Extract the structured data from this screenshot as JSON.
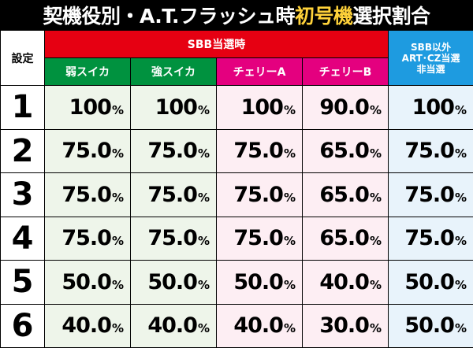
{
  "title": {
    "prefix": "契機役別・A.T.フラッシュ時",
    "highlight": "初号機",
    "suffix": "選択割合"
  },
  "header": {
    "setting_label": "設定",
    "group_label": "SBB当選時",
    "other_label_lines": [
      "SBB以外",
      "ART･CZ当選",
      "非当選"
    ],
    "columns": [
      "弱スイカ",
      "強スイカ",
      "チェリーA",
      "チェリーB"
    ]
  },
  "rows": [
    {
      "setting": "1",
      "values": [
        "100",
        "100",
        "100",
        "90.0",
        "100"
      ]
    },
    {
      "setting": "2",
      "values": [
        "75.0",
        "75.0",
        "75.0",
        "65.0",
        "75.0"
      ]
    },
    {
      "setting": "3",
      "values": [
        "75.0",
        "75.0",
        "75.0",
        "65.0",
        "75.0"
      ]
    },
    {
      "setting": "4",
      "values": [
        "75.0",
        "75.0",
        "75.0",
        "65.0",
        "75.0"
      ]
    },
    {
      "setting": "5",
      "values": [
        "50.0",
        "50.0",
        "50.0",
        "40.0",
        "50.0"
      ]
    },
    {
      "setting": "6",
      "values": [
        "40.0",
        "40.0",
        "40.0",
        "30.0",
        "50.0"
      ]
    }
  ],
  "unit": "%",
  "colors": {
    "group_header": "#e60012",
    "green_header": "#00923f",
    "pink_header": "#e4007f",
    "blue_header": "#1e9be0",
    "title_highlight": "#ffd23a"
  }
}
